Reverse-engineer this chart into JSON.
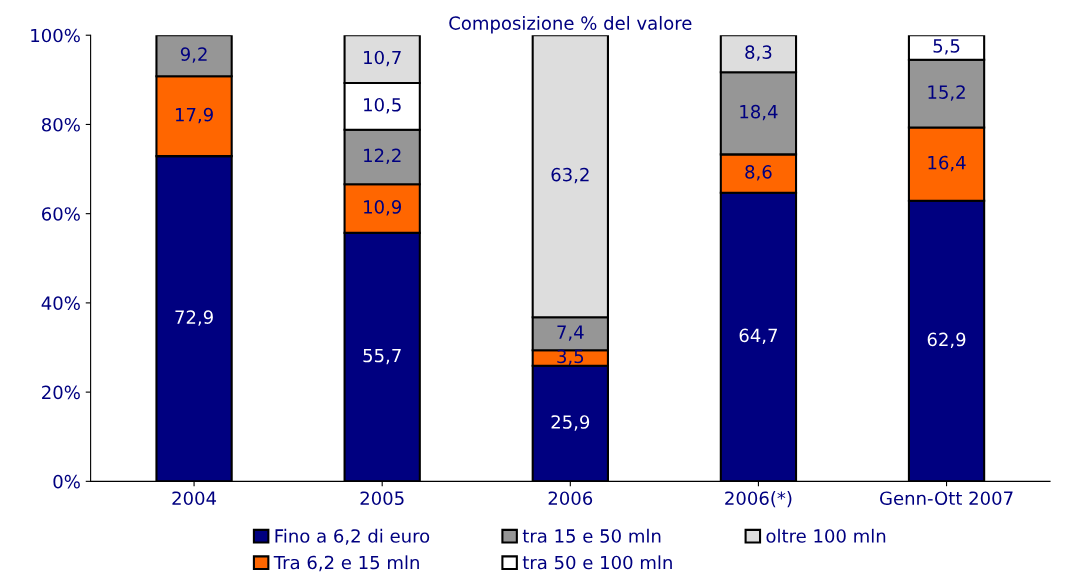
{
  "chart_data": {
    "type": "bar",
    "title": "Composizione % del valore",
    "stacked": true,
    "categories": [
      "2004",
      "2005",
      "2006",
      "2006(*)",
      "Genn-Ott 2007"
    ],
    "series": [
      {
        "name": "Fino a 6,2 di euro",
        "color": "#000080",
        "values": [
          72.9,
          55.7,
          25.9,
          64.7,
          62.9
        ],
        "value_labels": [
          "72,9",
          "55,7",
          "25,9",
          "64,7",
          "62,9"
        ]
      },
      {
        "name": "Tra 6,2 e 15 mln",
        "color": "#ff6600",
        "values": [
          17.9,
          10.9,
          3.5,
          8.6,
          16.4
        ],
        "value_labels": [
          "17,9",
          "10,9",
          "3,5",
          "8,6",
          "16,4"
        ]
      },
      {
        "name": "tra 15 e 50 mln",
        "color": "#969696",
        "values": [
          9.2,
          12.2,
          7.4,
          18.4,
          15.2
        ],
        "value_labels": [
          "9,2",
          "12,2",
          "7,4",
          "18,4",
          "15,2"
        ]
      },
      {
        "name": "tra 50 e 100 mln",
        "color": "#ffffff",
        "values": [
          null,
          10.5,
          null,
          null,
          5.5
        ],
        "value_labels": [
          null,
          "10,5",
          null,
          null,
          "5,5"
        ]
      },
      {
        "name": "oltre 100 mln",
        "color": "#dddddd",
        "values": [
          null,
          10.7,
          63.2,
          8.3,
          null
        ],
        "value_labels": [
          null,
          "10,7",
          "63,2",
          "8,3",
          null
        ]
      }
    ],
    "ylim": [
      0,
      100
    ],
    "yticks": [
      {
        "value": 0,
        "label": "0%"
      },
      {
        "value": 20,
        "label": "20%"
      },
      {
        "value": 40,
        "label": "40%"
      },
      {
        "value": 60,
        "label": "60%"
      },
      {
        "value": 80,
        "label": "80%"
      },
      {
        "value": 100,
        "label": "100%"
      }
    ],
    "grid": false,
    "legend": "bottom"
  }
}
